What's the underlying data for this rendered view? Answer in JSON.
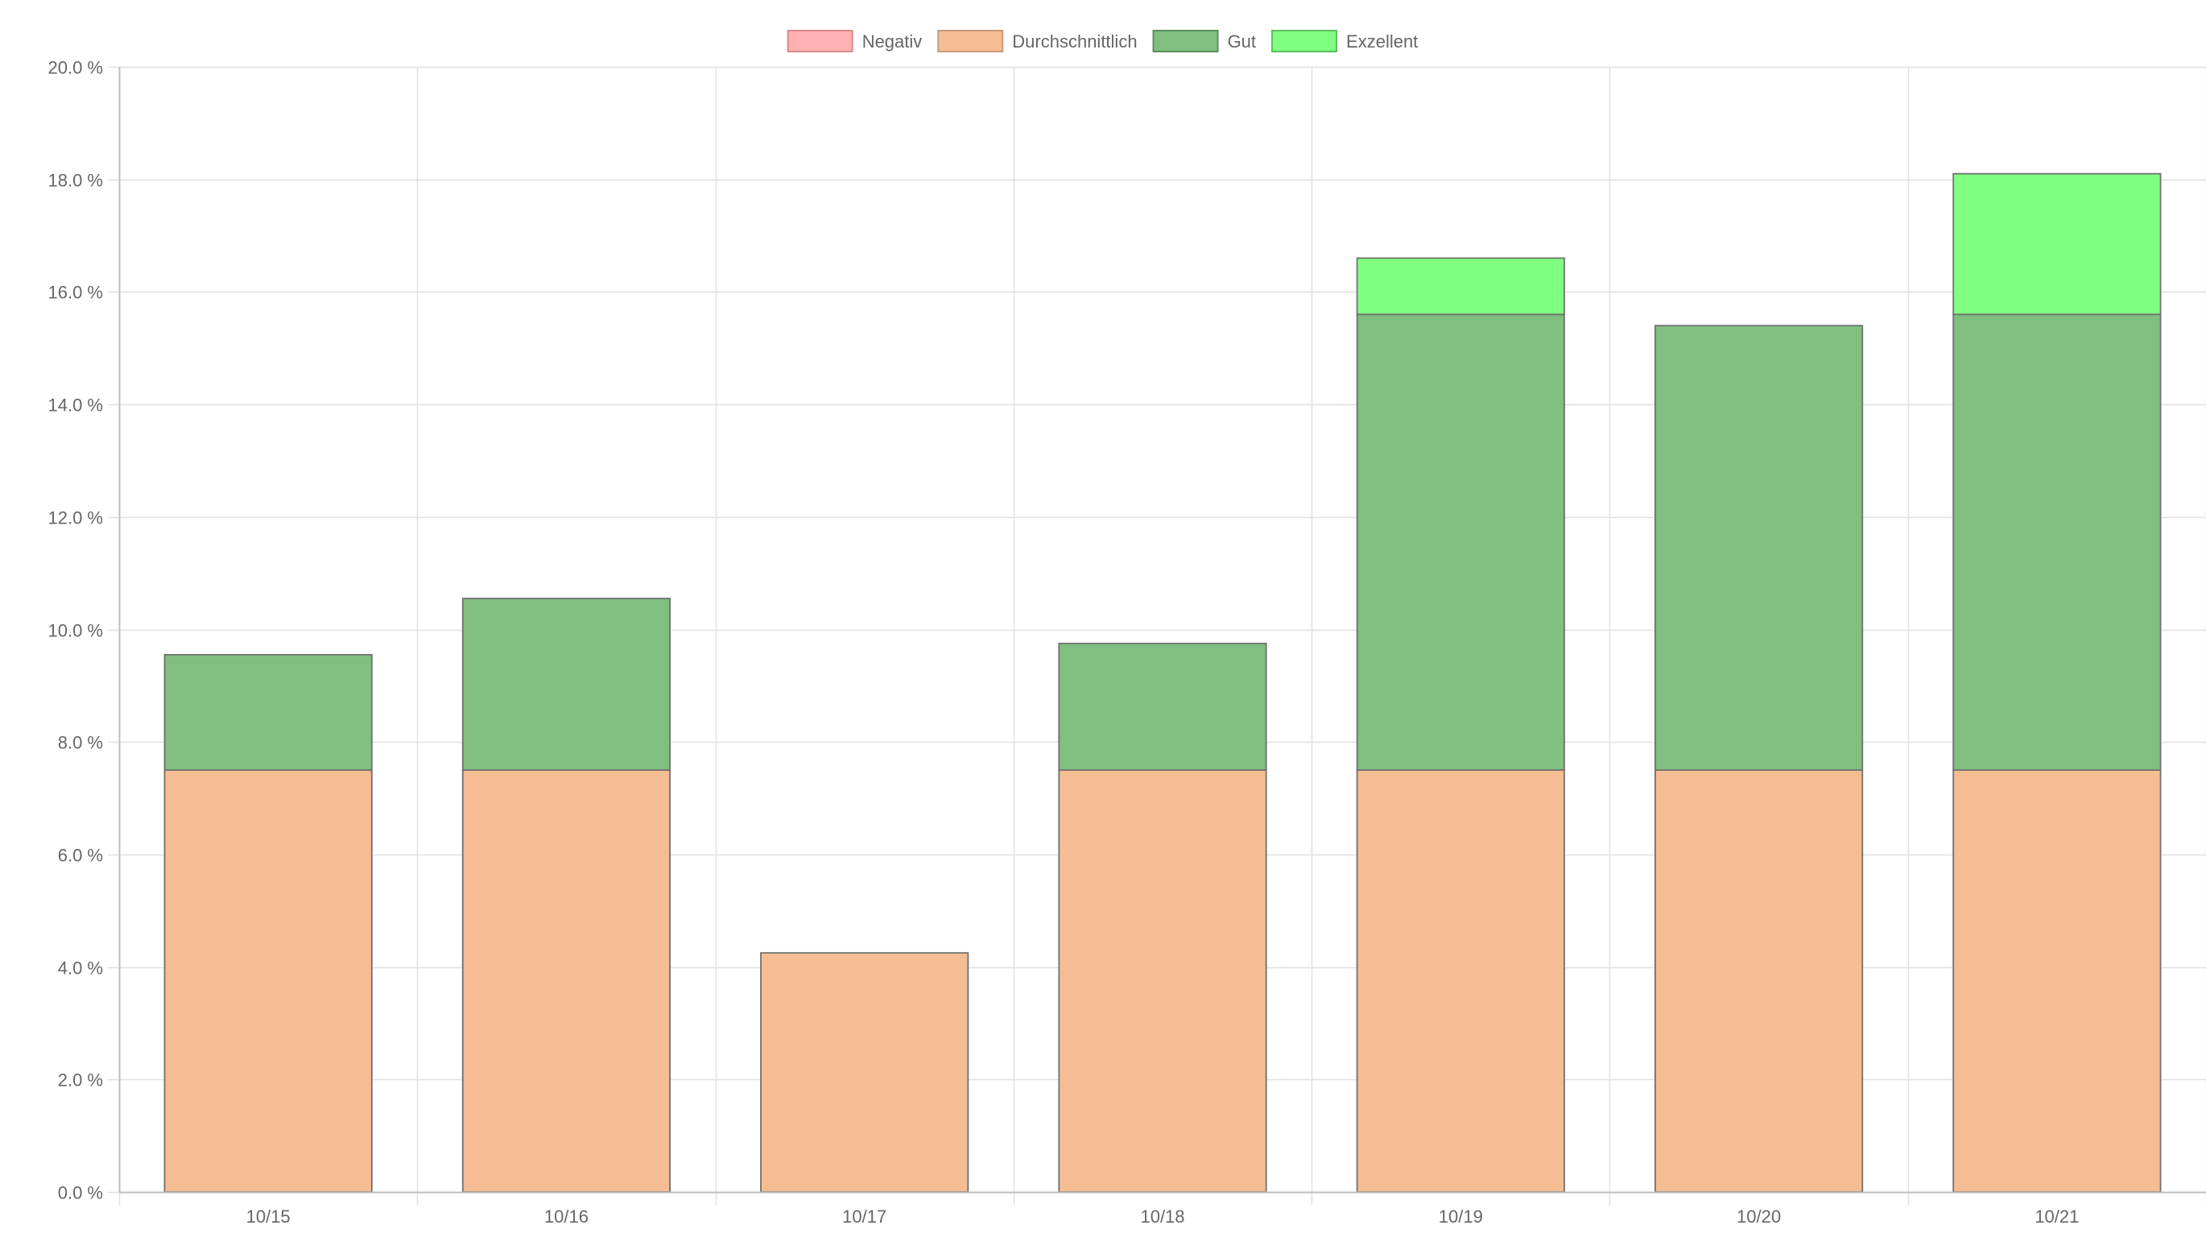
{
  "chart_data": {
    "type": "bar",
    "stacked": true,
    "categories": [
      "10/15",
      "10/16",
      "10/17",
      "10/18",
      "10/19",
      "10/20",
      "10/21"
    ],
    "series": [
      {
        "name": "Negativ",
        "fill": "#ffb1b1",
        "stroke": "#d88a8a",
        "values": [
          0,
          0,
          0,
          0,
          0,
          0,
          0
        ]
      },
      {
        "name": "Durchschnittlich",
        "fill": "#f5bd93",
        "stroke": "#c99a76",
        "values": [
          7.5,
          7.5,
          4.25,
          7.5,
          7.5,
          7.5,
          7.5
        ]
      },
      {
        "name": "Gut",
        "fill": "#80bf80",
        "stroke": "#5a8f5a",
        "values": [
          2.05,
          3.05,
          0,
          2.25,
          8.1,
          7.9,
          8.1
        ]
      },
      {
        "name": "Exzellent",
        "fill": "#80ff80",
        "stroke": "#5abf5a",
        "values": [
          0,
          0,
          0,
          0,
          1.0,
          0,
          2.5
        ]
      }
    ],
    "y_unit_suffix": " %",
    "ylim": [
      0,
      20
    ],
    "y_ticks": [
      0,
      2,
      4,
      6,
      8,
      10,
      12,
      14,
      16,
      18,
      20
    ],
    "y_tick_decimals": 1,
    "grid": true,
    "legend_position": "top",
    "title": "",
    "xlabel": "",
    "ylabel": ""
  }
}
